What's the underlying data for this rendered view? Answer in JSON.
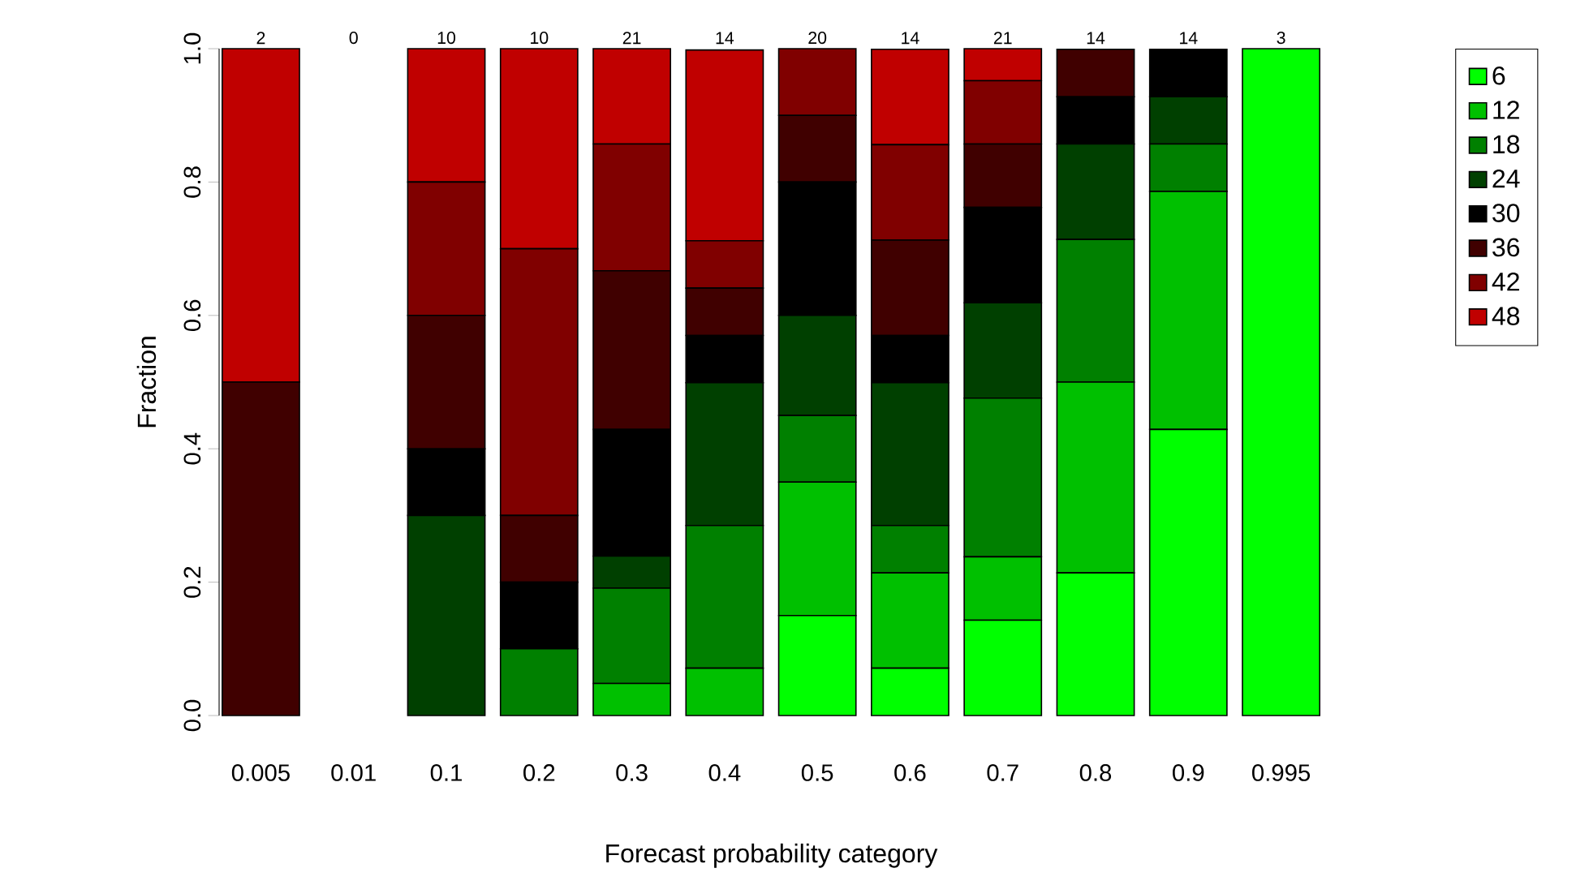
{
  "chart_data": {
    "type": "bar",
    "stacked": true,
    "xlabel": "Forecast probability category",
    "ylabel": "Fraction",
    "legend": "right",
    "categories": [
      "0.005",
      "0.01",
      "0.1",
      "0.2",
      "0.3",
      "0.4",
      "0.5",
      "0.6",
      "0.7",
      "0.8",
      "0.9",
      "0.995"
    ],
    "ylim": [
      0,
      1
    ],
    "yticks": [
      {
        "value": 0,
        "label": "0.0"
      },
      {
        "value": 0.2,
        "label": "0.2"
      },
      {
        "value": 0.4,
        "label": "0.4"
      },
      {
        "value": 0.6,
        "label": "0.6"
      },
      {
        "value": 0.8,
        "label": "0.8"
      },
      {
        "value": 1,
        "label": "1.0"
      }
    ],
    "annotations": [
      {
        "text": "2",
        "x": "0.005",
        "y": 1
      },
      "0",
      {
        "text": "10",
        "x": "0.1",
        "y": 1
      },
      {
        "text": "10",
        "x": "0.2",
        "y": 1
      },
      {
        "text": "21",
        "x": "0.3",
        "y": 1
      },
      {
        "text": "14",
        "x": "0.4",
        "y": 1
      },
      {
        "text": "20",
        "x": "0.5",
        "y": 1
      },
      {
        "text": "14",
        "x": "0.6",
        "y": 1
      },
      {
        "text": "21",
        "x": "0.7",
        "y": 1
      },
      {
        "text": "14",
        "x": "0.8",
        "y": 1
      },
      {
        "text": "14",
        "x": "0.9",
        "y": 1
      },
      {
        "text": "3",
        "x": "0.995",
        "y": 1
      }
    ],
    "series": [
      {
        "name": "6",
        "color": "#00ff00",
        "values": [
          0,
          0,
          0,
          0,
          0,
          0,
          0.15,
          0.071,
          0.143,
          0.214,
          0.429,
          1
        ]
      },
      {
        "name": "12",
        "color": "#00c000",
        "values": [
          0,
          0,
          0,
          0,
          0.048,
          0.071,
          0.2,
          0.143,
          0.095,
          0.286,
          0.357,
          0
        ]
      },
      {
        "name": "18",
        "color": "#008000",
        "values": [
          0,
          0,
          0,
          0.1,
          0.143,
          0.214,
          0.1,
          0.071,
          0.238,
          0.214,
          0.071,
          0
        ]
      },
      {
        "name": "24",
        "color": "#004000",
        "values": [
          0,
          0,
          0.3,
          0,
          0.048,
          0.214,
          0.15,
          0.214,
          0.143,
          0.143,
          0.071,
          0
        ]
      },
      {
        "name": "30",
        "color": "#000000",
        "values": [
          0,
          0,
          0.1,
          0.1,
          0.19,
          0.071,
          0.2,
          0.071,
          0.143,
          0.071,
          0.071,
          0
        ]
      },
      {
        "name": "36",
        "color": "#400000",
        "values": [
          0.5,
          0,
          0.2,
          0.1,
          0.238,
          0.071,
          0.1,
          0.143,
          0.095,
          0.071,
          0,
          0
        ]
      },
      {
        "name": "42",
        "color": "#800000",
        "values": [
          0,
          0,
          0.2,
          0.4,
          0.19,
          0.071,
          0.1,
          0.143,
          0.095,
          0,
          0,
          0
        ]
      },
      {
        "name": "48",
        "color": "#c00000",
        "values": [
          0.5,
          0,
          0.2,
          0.3,
          0.143,
          0.286,
          0,
          0.143,
          0.048,
          0,
          0,
          0
        ]
      }
    ]
  }
}
